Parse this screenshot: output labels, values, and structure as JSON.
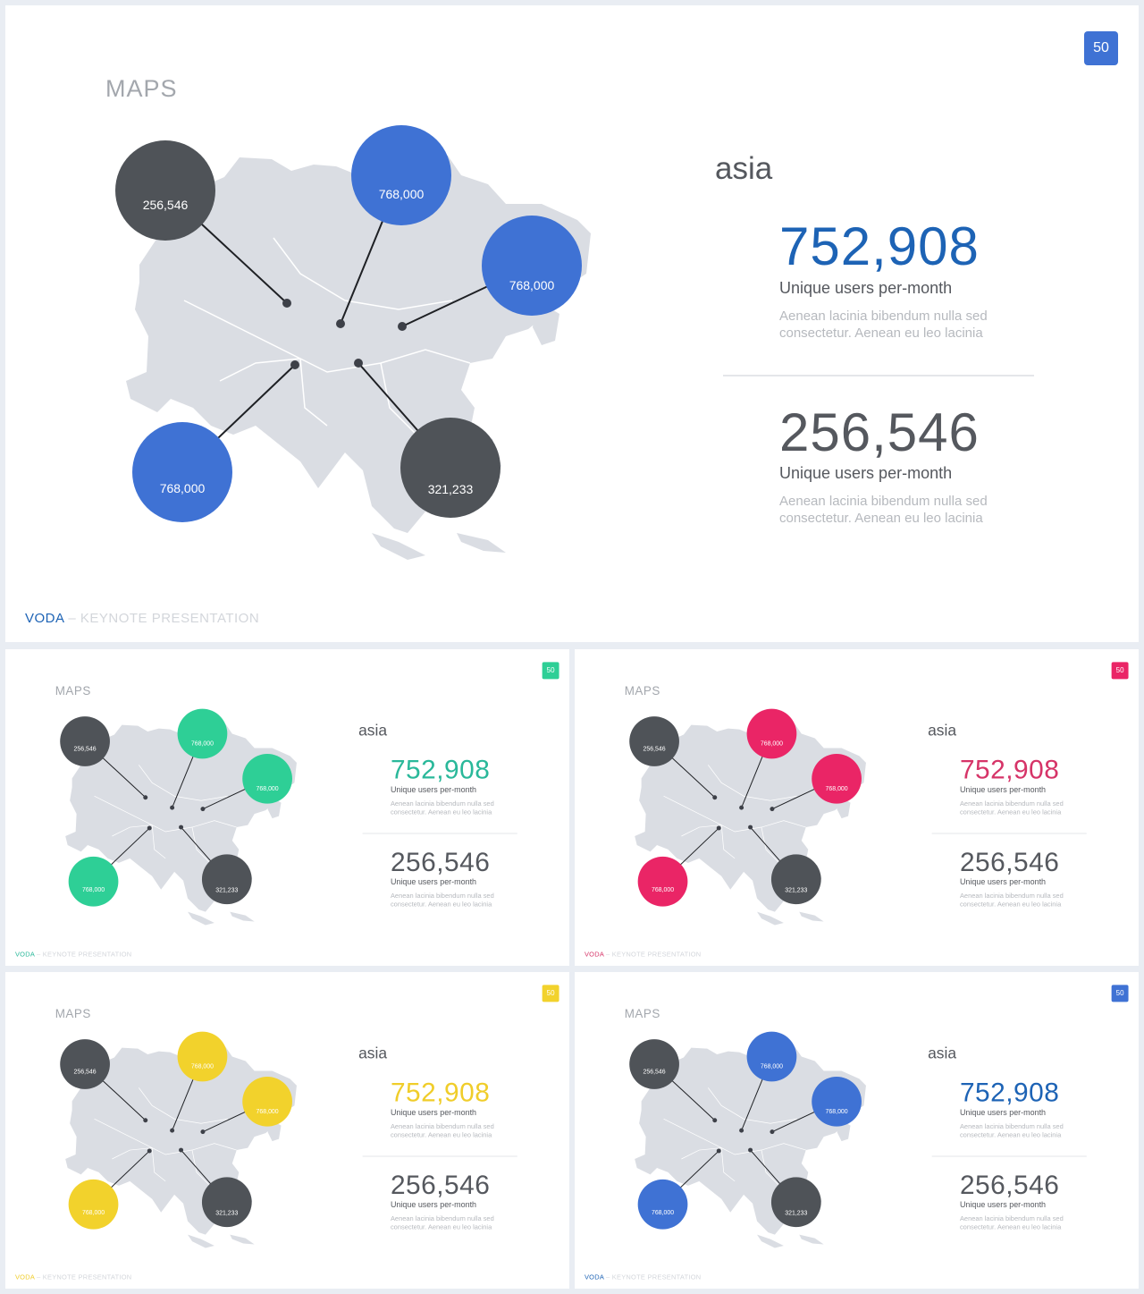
{
  "slide": {
    "number": "50",
    "title": "MAPS",
    "region": "asia",
    "stat1": {
      "value": "752,908",
      "label": "Unique users per-month",
      "desc_line1": "Aenean lacinia bibendum nulla sed",
      "desc_line2": "consectetur. Aenean eu leo lacinia"
    },
    "stat2": {
      "value": "256,546",
      "label": "Unique users per-month",
      "desc_line1": "Aenean lacinia bibendum nulla sed",
      "desc_line2": "consectetur. Aenean eu leo lacinia"
    },
    "footer": {
      "brand": "VODA",
      "separator": "–",
      "tagline": "KEYNOTE PRESENTATION"
    },
    "map_labels": [
      "256,546",
      "768,000",
      "768,000",
      "768,000",
      "321,233"
    ]
  },
  "variants": [
    {
      "name": "blue-large",
      "accent": "#3f72d4",
      "stat_color": "#1d63b5",
      "brand_color": "#1d63b5"
    },
    {
      "name": "green",
      "accent": "#2ecf96",
      "stat_color": "#2ab89a",
      "brand_color": "#2ab89a"
    },
    {
      "name": "pink",
      "accent": "#ea2566",
      "stat_color": "#d63468",
      "brand_color": "#d63468"
    },
    {
      "name": "yellow",
      "accent": "#f2d22c",
      "stat_color": "#f0cd2a",
      "brand_color": "#f0cd2a"
    },
    {
      "name": "blue",
      "accent": "#3f72d4",
      "stat_color": "#1d63b5",
      "brand_color": "#1d63b5"
    }
  ],
  "colors": {
    "dark_circle": "#4f5358",
    "map_fill": "#dadde3",
    "background": "#e9edf3"
  }
}
